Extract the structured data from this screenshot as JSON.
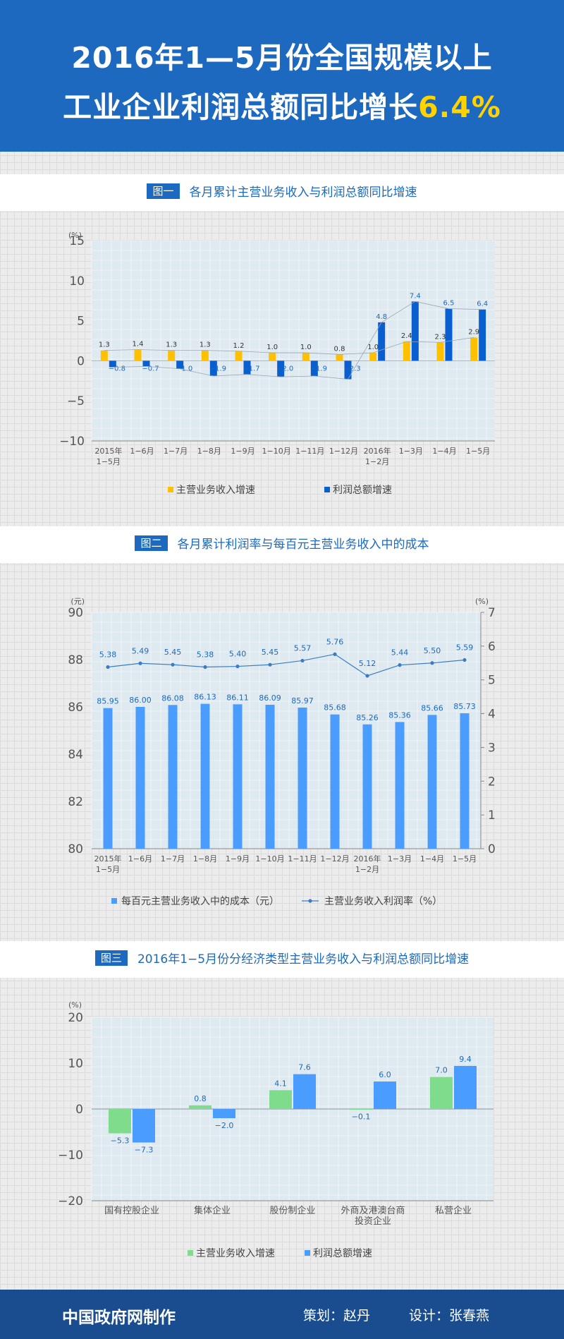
{
  "header": {
    "line1": "2016年1—5月份全国规模以上",
    "line2_main": "工业企业利润总额同比增长",
    "line2_highlight": "6.4%"
  },
  "footer": {
    "maker": "中国政府网制作",
    "planner": "策划：赵丹",
    "designer": "设计：张春燕"
  },
  "colors": {
    "header_blue": "#1c69bf",
    "footer_blue": "#1a4d8f",
    "bar_yellow": "#ffc000",
    "bar_blue": "#0a5fd0",
    "bar_light_blue": "#4a9cff",
    "bar_green": "#7fdc8c",
    "line_blue": "#3a7dc4"
  },
  "chart_data": [
    {
      "type": "bar",
      "badge": "图一",
      "title": "各月累计主营业务收入与利润总额同比增速",
      "y_unit": "(%)",
      "ylim": [
        -10,
        15
      ],
      "yticks": [
        -10,
        -5,
        0,
        5,
        10,
        15
      ],
      "grid": true,
      "legend_position": "bottom",
      "categories": [
        "2015年\n1−5月",
        "1−6月",
        "1−7月",
        "1−8月",
        "1−9月",
        "1−10月",
        "1−11月",
        "1−12月",
        "2016年\n1−2月",
        "1−3月",
        "1−4月",
        "1−5月"
      ],
      "series": [
        {
          "name": "主营业务收入增速",
          "color": "#ffc000",
          "values": [
            1.3,
            1.4,
            1.3,
            1.3,
            1.2,
            1.0,
            1.0,
            0.8,
            1.0,
            2.4,
            2.3,
            2.9
          ]
        },
        {
          "name": "利润总额增速",
          "color": "#0a5fd0",
          "values": [
            -0.8,
            -0.7,
            -1.0,
            -1.9,
            -1.7,
            -2.0,
            -1.9,
            -2.3,
            4.8,
            7.4,
            6.5,
            6.4
          ]
        }
      ]
    },
    {
      "type": "bar",
      "badge": "图二",
      "title": "各月累计利润率与每百元主营业务收入中的成本",
      "y_unit_left": "(元)",
      "y_unit_right": "(%)",
      "ylim_left": [
        80,
        90
      ],
      "yticks_left": [
        80,
        82,
        84,
        86,
        88,
        90
      ],
      "ylim_right": [
        0,
        7
      ],
      "yticks_right": [
        0,
        1,
        2,
        3,
        4,
        5,
        6,
        7
      ],
      "grid": true,
      "legend_position": "bottom",
      "categories": [
        "2015年\n1−5月",
        "1−6月",
        "1−7月",
        "1−8月",
        "1−9月",
        "1−10月",
        "1−11月",
        "1−12月",
        "2016年\n1−2月",
        "1−3月",
        "1−4月",
        "1−5月"
      ],
      "series": [
        {
          "name": "每百元主营业务收入中的成本（元）",
          "kind": "bar",
          "axis": "left",
          "color": "#4a9cff",
          "values": [
            85.95,
            86.0,
            86.08,
            86.13,
            86.11,
            86.09,
            85.97,
            85.68,
            85.26,
            85.36,
            85.66,
            85.73
          ]
        },
        {
          "name": "主营业务收入利润率（%）",
          "kind": "line",
          "axis": "right",
          "color": "#3a7dc4",
          "values": [
            5.38,
            5.49,
            5.45,
            5.38,
            5.4,
            5.45,
            5.57,
            5.76,
            5.12,
            5.44,
            5.5,
            5.59
          ]
        }
      ]
    },
    {
      "type": "bar",
      "badge": "图三",
      "title": "2016年1−5月份分经济类型主营业务收入与利润总额同比增速",
      "y_unit": "(%)",
      "ylim": [
        -20,
        20
      ],
      "yticks": [
        -20,
        -10,
        0,
        10,
        20
      ],
      "grid": true,
      "legend_position": "bottom",
      "categories": [
        "国有控股企业",
        "集体企业",
        "股份制企业",
        "外商及港澳台商\n投资企业",
        "私营企业"
      ],
      "series": [
        {
          "name": "主营业务收入增速",
          "color": "#7fdc8c",
          "values": [
            -5.3,
            0.8,
            4.1,
            -0.1,
            7.0
          ]
        },
        {
          "name": "利润总额增速",
          "color": "#4a9cff",
          "values": [
            -7.3,
            -2.0,
            7.6,
            6.0,
            9.4
          ]
        }
      ]
    }
  ]
}
